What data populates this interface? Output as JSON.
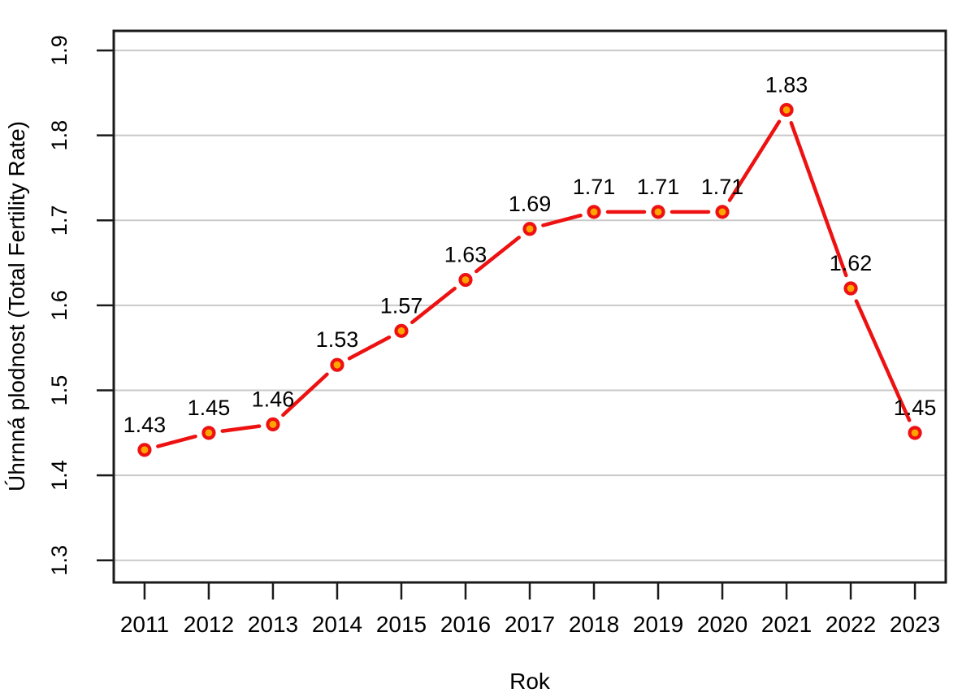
{
  "chart_data": {
    "type": "line",
    "title": "",
    "xlabel": "Rok",
    "ylabel": "Úhrnná plodnost (Total Fertility Rate)",
    "categories": [
      "2011",
      "2012",
      "2013",
      "2014",
      "2015",
      "2016",
      "2017",
      "2018",
      "2019",
      "2020",
      "2021",
      "2022",
      "2023"
    ],
    "series": [
      {
        "name": "total-fertility-rate",
        "values": [
          1.43,
          1.45,
          1.46,
          1.53,
          1.57,
          1.63,
          1.69,
          1.71,
          1.71,
          1.71,
          1.83,
          1.62,
          1.45
        ],
        "point_labels": [
          "1.43",
          "1.45",
          "1.46",
          "1.53",
          "1.57",
          "1.63",
          "1.69",
          "1.71",
          "1.71",
          "1.71",
          "1.83",
          "1.62",
          "1.45"
        ]
      }
    ],
    "yticks": [
      "1.3",
      "1.4",
      "1.5",
      "1.6",
      "1.7",
      "1.8",
      "1.9"
    ],
    "ytick_values": [
      1.3,
      1.4,
      1.5,
      1.6,
      1.7,
      1.8,
      1.9
    ],
    "xlim": [
      2010.52,
      2023.48
    ],
    "ylim": [
      1.274,
      1.923
    ],
    "grid": true,
    "legend_position": "none",
    "marker": "circle",
    "line_style": "solid-with-point-gaps",
    "colors": {
      "line": "#ee1111",
      "marker_fill": "#ffa500",
      "marker_stroke": "#ee1111",
      "grid": "#c9c9c9",
      "axis_box": "#1a1a1a",
      "text": "#000000",
      "background": "#ffffff"
    }
  }
}
